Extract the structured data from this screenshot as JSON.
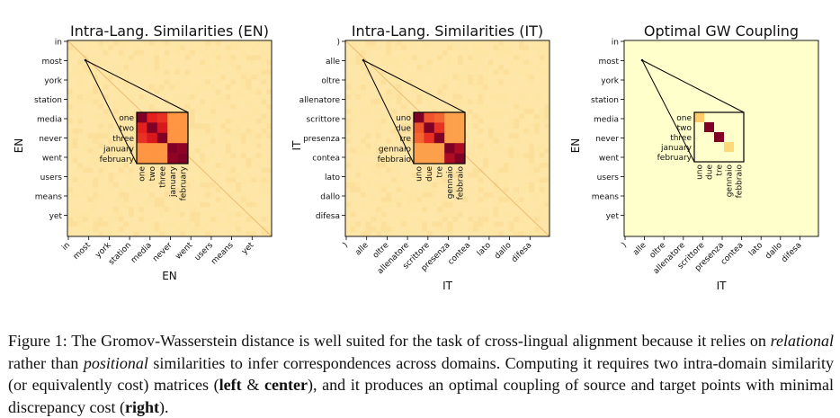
{
  "chart_data": [
    {
      "type": "heatmap",
      "title": "Intra-Lang. Similarities (EN)",
      "xlabel": "EN",
      "ylabel": "EN",
      "y_ticks": [
        "in",
        "most",
        "york",
        "station",
        "media",
        "never",
        "went",
        "users",
        "means",
        "yet"
      ],
      "x_ticks": [
        "in",
        "most",
        "york",
        "station",
        "media",
        "never",
        "went",
        "users",
        "means",
        "yet"
      ],
      "inset": {
        "labels": [
          "one",
          "two",
          "three",
          "january",
          "february"
        ],
        "matrix": [
          [
            1.0,
            0.65,
            0.6,
            0.3,
            0.3
          ],
          [
            0.65,
            1.0,
            0.7,
            0.3,
            0.3
          ],
          [
            0.6,
            0.7,
            1.0,
            0.3,
            0.3
          ],
          [
            0.3,
            0.3,
            0.3,
            1.0,
            0.95
          ],
          [
            0.3,
            0.3,
            0.3,
            0.95,
            1.0
          ]
        ]
      }
    },
    {
      "type": "heatmap",
      "title": "Intra-Lang. Similarities (IT)",
      "xlabel": "IT",
      "ylabel": "IT",
      "y_ticks": [
        ")",
        "alle",
        "oltre",
        "allenatore",
        "scrittore",
        "presenza",
        "contea",
        "lato",
        "dallo",
        "difesa"
      ],
      "x_ticks": [
        ")",
        "alle",
        "oltre",
        "allenatore",
        "scrittore",
        "presenza",
        "contea",
        "lato",
        "dallo",
        "difesa"
      ],
      "inset": {
        "labels": [
          "uno",
          "due",
          "tre",
          "gennaio",
          "febbraio"
        ],
        "matrix": [
          [
            1.0,
            0.5,
            0.45,
            0.25,
            0.25
          ],
          [
            0.5,
            1.0,
            0.6,
            0.25,
            0.25
          ],
          [
            0.45,
            0.6,
            1.0,
            0.25,
            0.25
          ],
          [
            0.25,
            0.25,
            0.25,
            1.0,
            0.85
          ],
          [
            0.25,
            0.25,
            0.25,
            0.85,
            1.0
          ]
        ]
      }
    },
    {
      "type": "heatmap",
      "title": "Optimal GW Coupling",
      "xlabel": "IT",
      "ylabel": "EN",
      "y_ticks": [
        "in",
        "most",
        "york",
        "station",
        "media",
        "never",
        "went",
        "users",
        "means",
        "yet"
      ],
      "x_ticks": [
        ")",
        "alle",
        "oltre",
        "allenatore",
        "scrittore",
        "presenza",
        "contea",
        "lato",
        "dallo",
        "difesa"
      ],
      "inset": {
        "row_labels": [
          "one",
          "two",
          "three",
          "january",
          "february"
        ],
        "col_labels": [
          "uno",
          "due",
          "tre",
          "gennaio",
          "febbraio"
        ],
        "matrix": [
          [
            0.3,
            0.0,
            0.0,
            0.0,
            0.0
          ],
          [
            0.0,
            1.0,
            0.0,
            0.0,
            0.0
          ],
          [
            0.0,
            0.0,
            1.0,
            0.0,
            0.0
          ],
          [
            0.0,
            0.0,
            0.0,
            0.25,
            0.0
          ],
          [
            0.0,
            0.0,
            0.0,
            0.0,
            0.0
          ]
        ]
      }
    }
  ],
  "caption": {
    "label": "Figure 1:",
    "segments": [
      {
        "text": " The Gromov-Wasserstein distance is well suited for the task of cross-lingual alignment because it relies on ",
        "style": "normal"
      },
      {
        "text": "relational",
        "style": "italic"
      },
      {
        "text": " rather than ",
        "style": "normal"
      },
      {
        "text": "positional",
        "style": "italic"
      },
      {
        "text": " similarities to infer correspondences across domains. Computing it requires two intra-domain similarity (or equivalently cost) matrices (",
        "style": "normal"
      },
      {
        "text": "left",
        "style": "bold"
      },
      {
        "text": " & ",
        "style": "normal"
      },
      {
        "text": "center",
        "style": "bold"
      },
      {
        "text": "), and it produces an optimal coupling of source and target points with minimal discrepancy cost (",
        "style": "normal"
      },
      {
        "text": "right",
        "style": "bold"
      },
      {
        "text": ").",
        "style": "normal"
      }
    ]
  }
}
